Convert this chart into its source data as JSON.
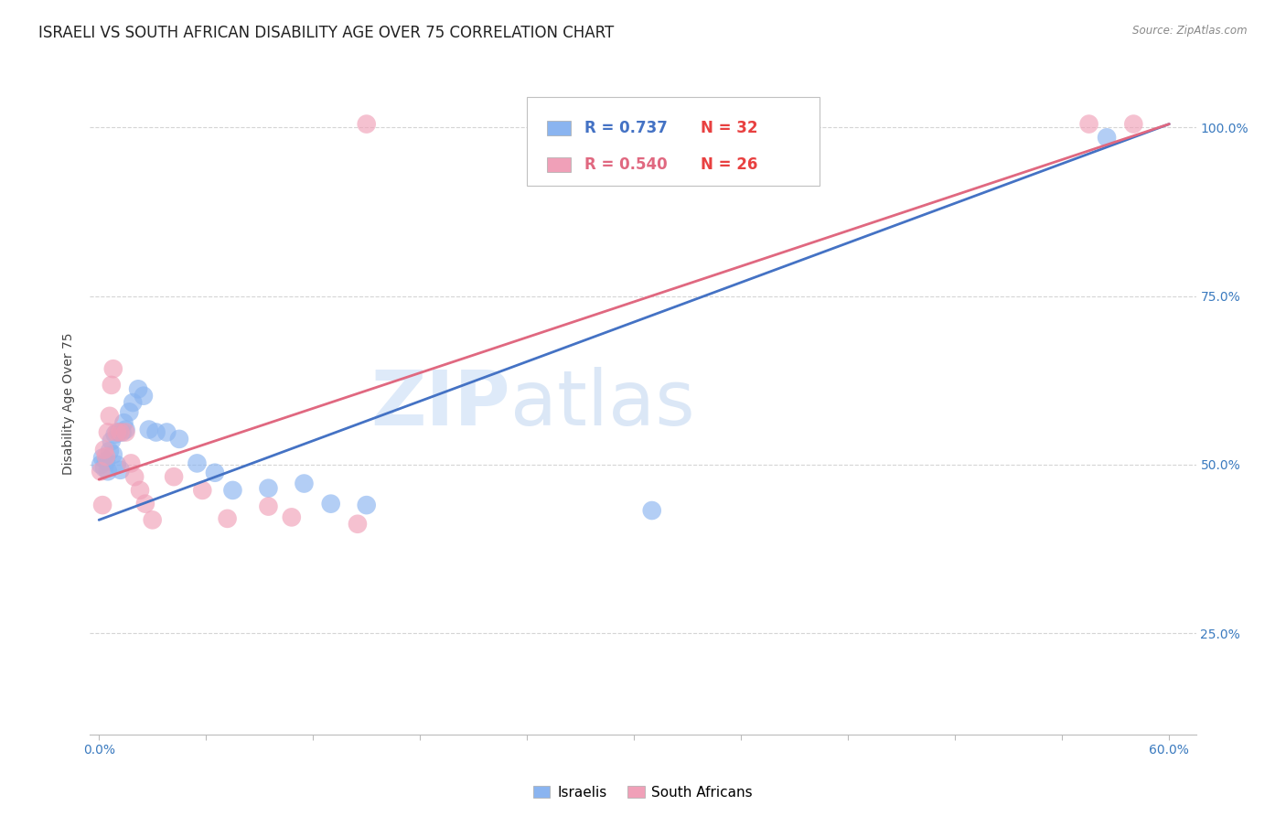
{
  "title": "ISRAELI VS SOUTH AFRICAN DISABILITY AGE OVER 75 CORRELATION CHART",
  "source": "Source: ZipAtlas.com",
  "ylabel": "Disability Age Over 75",
  "watermark_zip": "ZIP",
  "watermark_atlas": "atlas",
  "xlim": [
    -0.005,
    0.615
  ],
  "ylim": [
    0.1,
    1.08
  ],
  "xtick_positions": [
    0.0,
    0.06,
    0.12,
    0.18,
    0.24,
    0.3,
    0.36,
    0.42,
    0.48,
    0.54,
    0.6
  ],
  "xticklabels": [
    "0.0%",
    "",
    "",
    "",
    "",
    "",
    "",
    "",
    "",
    "",
    "60.0%"
  ],
  "ytick_positions": [
    0.25,
    0.5,
    0.75,
    1.0
  ],
  "ytick_labels_right": [
    "25.0%",
    "50.0%",
    "75.0%",
    "100.0%"
  ],
  "israeli_color": "#8ab4f0",
  "sa_color": "#f0a0b8",
  "israeli_line_color": "#4472c4",
  "sa_line_color": "#e06880",
  "legend_r_israeli": "R = 0.737",
  "legend_n_israeli": "N = 32",
  "legend_r_sa": "R = 0.540",
  "legend_n_sa": "N = 26",
  "israeli_r_color": "#4472c4",
  "israeli_n_color": "#e84040",
  "sa_r_color": "#e06880",
  "sa_n_color": "#e84040",
  "israeli_points": [
    [
      0.001,
      0.5
    ],
    [
      0.002,
      0.51
    ],
    [
      0.003,
      0.495
    ],
    [
      0.004,
      0.505
    ],
    [
      0.005,
      0.49
    ],
    [
      0.006,
      0.52
    ],
    [
      0.007,
      0.535
    ],
    [
      0.008,
      0.515
    ],
    [
      0.009,
      0.545
    ],
    [
      0.01,
      0.5
    ],
    [
      0.011,
      0.548
    ],
    [
      0.012,
      0.492
    ],
    [
      0.013,
      0.548
    ],
    [
      0.014,
      0.562
    ],
    [
      0.015,
      0.552
    ],
    [
      0.017,
      0.578
    ],
    [
      0.019,
      0.592
    ],
    [
      0.022,
      0.612
    ],
    [
      0.025,
      0.602
    ],
    [
      0.028,
      0.552
    ],
    [
      0.032,
      0.548
    ],
    [
      0.038,
      0.548
    ],
    [
      0.045,
      0.538
    ],
    [
      0.055,
      0.502
    ],
    [
      0.065,
      0.488
    ],
    [
      0.075,
      0.462
    ],
    [
      0.095,
      0.465
    ],
    [
      0.115,
      0.472
    ],
    [
      0.13,
      0.442
    ],
    [
      0.15,
      0.44
    ],
    [
      0.31,
      0.432
    ],
    [
      0.565,
      0.985
    ]
  ],
  "sa_points": [
    [
      0.001,
      0.49
    ],
    [
      0.002,
      0.44
    ],
    [
      0.003,
      0.522
    ],
    [
      0.004,
      0.512
    ],
    [
      0.005,
      0.548
    ],
    [
      0.006,
      0.572
    ],
    [
      0.007,
      0.618
    ],
    [
      0.008,
      0.642
    ],
    [
      0.01,
      0.548
    ],
    [
      0.012,
      0.548
    ],
    [
      0.015,
      0.548
    ],
    [
      0.018,
      0.502
    ],
    [
      0.02,
      0.482
    ],
    [
      0.023,
      0.462
    ],
    [
      0.026,
      0.442
    ],
    [
      0.03,
      0.418
    ],
    [
      0.042,
      0.482
    ],
    [
      0.058,
      0.462
    ],
    [
      0.072,
      0.42
    ],
    [
      0.095,
      0.438
    ],
    [
      0.108,
      0.422
    ],
    [
      0.145,
      0.412
    ],
    [
      0.15,
      1.005
    ],
    [
      0.285,
      1.005
    ],
    [
      0.555,
      1.005
    ],
    [
      0.58,
      1.005
    ]
  ],
  "israeli_line_x0": 0.0,
  "israeli_line_y0": 0.418,
  "israeli_line_x1": 0.6,
  "israeli_line_y1": 1.005,
  "sa_line_x0": 0.0,
  "sa_line_y0": 0.478,
  "sa_line_x1": 0.6,
  "sa_line_y1": 1.005,
  "grid_color": "#d5d5d5",
  "background_color": "#ffffff",
  "title_fontsize": 12,
  "axis_label_fontsize": 10,
  "tick_fontsize": 10,
  "legend_fontsize": 12
}
